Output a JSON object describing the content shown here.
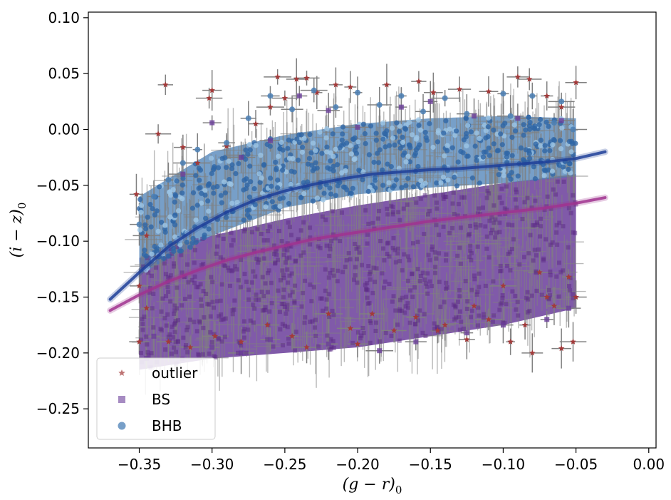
{
  "chart_data": {
    "type": "scatter",
    "xlabel": "(g − r)",
    "xlabel_sub": "0",
    "ylabel": "(i − z)",
    "ylabel_sub": "0",
    "xlim": [
      -0.385,
      0.005
    ],
    "ylim": [
      -0.285,
      0.105
    ],
    "x_ticks": [
      -0.35,
      -0.3,
      -0.25,
      -0.2,
      -0.15,
      -0.1,
      -0.05,
      0.0
    ],
    "x_tick_labels": [
      "−0.35",
      "−0.30",
      "−0.25",
      "−0.20",
      "−0.15",
      "−0.10",
      "−0.05",
      "0.00"
    ],
    "y_ticks": [
      0.1,
      0.05,
      0.0,
      -0.05,
      -0.1,
      -0.15,
      -0.2,
      -0.25
    ],
    "y_tick_labels": [
      "0.10",
      "0.05",
      "0.00",
      "−0.05",
      "−0.10",
      "−0.15",
      "−0.20",
      "−0.25"
    ],
    "grid": false,
    "legend_position": "lower-left",
    "series": [
      {
        "name": "outlier",
        "marker": "star",
        "color": "#a33a3a",
        "points": [
          [
            -0.332,
            0.04
          ],
          [
            -0.3,
            0.035
          ],
          [
            -0.302,
            0.028
          ],
          [
            -0.337,
            -0.004
          ],
          [
            -0.255,
            0.047
          ],
          [
            -0.242,
            0.045
          ],
          [
            -0.235,
            0.046
          ],
          [
            -0.215,
            0.04
          ],
          [
            -0.352,
            -0.058
          ],
          [
            -0.32,
            -0.016
          ],
          [
            -0.345,
            -0.095
          ],
          [
            -0.31,
            -0.03
          ],
          [
            -0.29,
            -0.015
          ],
          [
            -0.27,
            0.005
          ],
          [
            -0.26,
            0.02
          ],
          [
            -0.25,
            0.028
          ],
          [
            -0.228,
            0.033
          ],
          [
            -0.205,
            0.038
          ],
          [
            -0.18,
            0.04
          ],
          [
            -0.158,
            0.043
          ],
          [
            -0.148,
            0.033
          ],
          [
            -0.13,
            0.036
          ],
          [
            -0.11,
            0.034
          ],
          [
            -0.09,
            0.047
          ],
          [
            -0.082,
            0.045
          ],
          [
            -0.07,
            0.03
          ],
          [
            -0.06,
            0.02
          ],
          [
            -0.05,
            0.042
          ],
          [
            -0.075,
            -0.128
          ],
          [
            -0.07,
            -0.15
          ],
          [
            -0.065,
            -0.158
          ],
          [
            -0.085,
            -0.175
          ],
          [
            -0.095,
            -0.19
          ],
          [
            -0.08,
            -0.2
          ],
          [
            -0.06,
            -0.196
          ],
          [
            -0.052,
            -0.19
          ],
          [
            -0.11,
            -0.17
          ],
          [
            -0.12,
            -0.158
          ],
          [
            -0.14,
            -0.175
          ],
          [
            -0.16,
            -0.168
          ],
          [
            -0.175,
            -0.18
          ],
          [
            -0.19,
            -0.165
          ],
          [
            -0.205,
            -0.178
          ],
          [
            -0.22,
            -0.165
          ],
          [
            -0.245,
            -0.185
          ],
          [
            -0.262,
            -0.175
          ],
          [
            -0.28,
            -0.19
          ],
          [
            -0.298,
            -0.185
          ],
          [
            -0.315,
            -0.195
          ],
          [
            -0.33,
            -0.19
          ],
          [
            -0.345,
            -0.16
          ],
          [
            -0.35,
            -0.14
          ],
          [
            -0.35,
            -0.19
          ],
          [
            -0.05,
            -0.15
          ],
          [
            -0.055,
            -0.132
          ],
          [
            -0.1,
            -0.14
          ],
          [
            -0.145,
            -0.18
          ],
          [
            -0.125,
            -0.188
          ],
          [
            -0.2,
            -0.192
          ],
          [
            -0.235,
            -0.195
          ]
        ]
      },
      {
        "name": "BS",
        "marker": "square",
        "color": "#6a3d9a",
        "points": [
          [
            -0.3,
            0.006
          ],
          [
            -0.24,
            0.03
          ],
          [
            -0.22,
            0.017
          ],
          [
            -0.17,
            0.02
          ],
          [
            -0.15,
            0.025
          ],
          [
            -0.12,
            0.012
          ],
          [
            -0.09,
            0.01
          ],
          [
            -0.06,
            0.008
          ],
          [
            -0.26,
            -0.01
          ],
          [
            -0.28,
            -0.025
          ],
          [
            -0.32,
            -0.04
          ],
          [
            -0.2,
            0.002
          ],
          [
            -0.34,
            -0.185
          ],
          [
            -0.3,
            -0.195
          ],
          [
            -0.26,
            -0.188
          ],
          [
            -0.22,
            -0.192
          ],
          [
            -0.185,
            -0.198
          ],
          [
            -0.16,
            -0.19
          ],
          [
            -0.125,
            -0.182
          ],
          [
            -0.1,
            -0.175
          ],
          [
            -0.07,
            -0.17
          ],
          [
            -0.055,
            -0.16
          ],
          [
            -0.345,
            -0.205
          ],
          [
            -0.28,
            -0.2
          ]
        ],
        "band": [
          [
            -0.35,
            -0.215,
            -0.115
          ],
          [
            -0.3,
            -0.205,
            -0.095
          ],
          [
            -0.25,
            -0.2,
            -0.08
          ],
          [
            -0.2,
            -0.195,
            -0.068
          ],
          [
            -0.15,
            -0.185,
            -0.058
          ],
          [
            -0.1,
            -0.175,
            -0.048
          ],
          [
            -0.05,
            -0.16,
            -0.04
          ]
        ]
      },
      {
        "name": "BHB",
        "marker": "circle",
        "color": "#4a7fb5",
        "points": [
          [
            -0.26,
            0.03
          ],
          [
            -0.23,
            0.035
          ],
          [
            -0.2,
            0.033
          ],
          [
            -0.17,
            0.03
          ],
          [
            -0.14,
            0.028
          ],
          [
            -0.1,
            0.032
          ],
          [
            -0.08,
            0.03
          ],
          [
            -0.06,
            0.025
          ],
          [
            -0.31,
            -0.018
          ],
          [
            -0.29,
            -0.012
          ],
          [
            -0.34,
            -0.06
          ],
          [
            -0.33,
            -0.045
          ],
          [
            -0.35,
            -0.085
          ],
          [
            -0.32,
            -0.03
          ],
          [
            -0.275,
            0.01
          ],
          [
            -0.245,
            0.018
          ],
          [
            -0.215,
            0.02
          ],
          [
            -0.185,
            0.022
          ],
          [
            -0.155,
            0.016
          ],
          [
            -0.125,
            0.014
          ],
          [
            -0.095,
            0.012
          ],
          [
            -0.065,
            0.006
          ],
          [
            -0.052,
            0.0
          ]
        ],
        "band": [
          [
            -0.35,
            -0.13,
            -0.06
          ],
          [
            -0.3,
            -0.095,
            -0.02
          ],
          [
            -0.25,
            -0.07,
            -0.005
          ],
          [
            -0.2,
            -0.058,
            0.005
          ],
          [
            -0.15,
            -0.052,
            0.01
          ],
          [
            -0.1,
            -0.048,
            0.012
          ],
          [
            -0.05,
            -0.042,
            0.01
          ]
        ]
      }
    ],
    "fit_lines": [
      {
        "series": "BHB",
        "color": "#1f3f99",
        "points": [
          [
            -0.37,
            -0.152
          ],
          [
            -0.35,
            -0.128
          ],
          [
            -0.33,
            -0.105
          ],
          [
            -0.31,
            -0.088
          ],
          [
            -0.29,
            -0.074
          ],
          [
            -0.27,
            -0.063
          ],
          [
            -0.25,
            -0.055
          ],
          [
            -0.23,
            -0.049
          ],
          [
            -0.21,
            -0.044
          ],
          [
            -0.19,
            -0.04
          ],
          [
            -0.17,
            -0.038
          ],
          [
            -0.15,
            -0.036
          ],
          [
            -0.13,
            -0.035
          ],
          [
            -0.11,
            -0.033
          ],
          [
            -0.09,
            -0.031
          ],
          [
            -0.07,
            -0.029
          ],
          [
            -0.05,
            -0.026
          ],
          [
            -0.03,
            -0.02
          ]
        ]
      },
      {
        "series": "BS",
        "color": "#a0328f",
        "points": [
          [
            -0.37,
            -0.162
          ],
          [
            -0.35,
            -0.148
          ],
          [
            -0.33,
            -0.136
          ],
          [
            -0.31,
            -0.126
          ],
          [
            -0.29,
            -0.117
          ],
          [
            -0.27,
            -0.11
          ],
          [
            -0.25,
            -0.104
          ],
          [
            -0.23,
            -0.098
          ],
          [
            -0.21,
            -0.094
          ],
          [
            -0.19,
            -0.09
          ],
          [
            -0.17,
            -0.086
          ],
          [
            -0.15,
            -0.082
          ],
          [
            -0.13,
            -0.079
          ],
          [
            -0.11,
            -0.076
          ],
          [
            -0.09,
            -0.073
          ],
          [
            -0.07,
            -0.07
          ],
          [
            -0.05,
            -0.066
          ],
          [
            -0.03,
            -0.061
          ]
        ]
      }
    ]
  }
}
